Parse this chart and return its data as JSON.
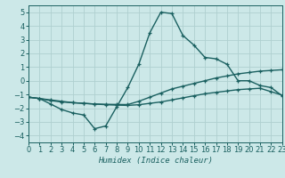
{
  "xlabel": "Humidex (Indice chaleur)",
  "background_color": "#cce8e8",
  "grid_color": "#afd0d0",
  "line_color": "#1a6060",
  "xlim": [
    0,
    23
  ],
  "ylim": [
    -4.5,
    5.5
  ],
  "xticks": [
    0,
    1,
    2,
    3,
    4,
    5,
    6,
    7,
    8,
    9,
    10,
    11,
    12,
    13,
    14,
    15,
    16,
    17,
    18,
    19,
    20,
    21,
    22,
    23
  ],
  "yticks": [
    -4,
    -3,
    -2,
    -1,
    0,
    1,
    2,
    3,
    4,
    5
  ],
  "line1_x": [
    0,
    1,
    2,
    3,
    4,
    5,
    6,
    7,
    8,
    9,
    10,
    11,
    12,
    13,
    14,
    15,
    16,
    17,
    18,
    19,
    20,
    21,
    22,
    23
  ],
  "line1_y": [
    -1.2,
    -1.3,
    -1.7,
    -2.1,
    -2.35,
    -2.5,
    -3.5,
    -3.3,
    -1.9,
    -0.5,
    1.2,
    3.5,
    5.0,
    4.9,
    3.3,
    2.6,
    1.7,
    1.6,
    1.2,
    0.0,
    0.0,
    -0.35,
    -0.5,
    -1.1
  ],
  "line2_x": [
    0,
    1,
    2,
    3,
    4,
    5,
    6,
    7,
    8,
    9,
    10,
    11,
    12,
    13,
    14,
    15,
    16,
    17,
    18,
    19,
    20,
    21,
    22,
    23
  ],
  "line2_y": [
    -1.2,
    -1.3,
    -1.4,
    -1.5,
    -1.6,
    -1.65,
    -1.7,
    -1.72,
    -1.73,
    -1.74,
    -1.5,
    -1.2,
    -0.9,
    -0.6,
    -0.4,
    -0.2,
    0.0,
    0.2,
    0.35,
    0.5,
    0.6,
    0.7,
    0.75,
    0.8
  ],
  "line3_x": [
    0,
    1,
    2,
    3,
    4,
    5,
    6,
    7,
    8,
    9,
    10,
    11,
    12,
    13,
    14,
    15,
    16,
    17,
    18,
    19,
    20,
    21,
    22,
    23
  ],
  "line3_y": [
    -1.2,
    -1.3,
    -1.45,
    -1.55,
    -1.6,
    -1.65,
    -1.7,
    -1.75,
    -1.78,
    -1.8,
    -1.75,
    -1.65,
    -1.55,
    -1.4,
    -1.25,
    -1.1,
    -0.95,
    -0.85,
    -0.75,
    -0.65,
    -0.6,
    -0.55,
    -0.8,
    -1.05
  ],
  "xlabel_fontsize": 6.5,
  "tick_fontsize": 6.0,
  "linewidth": 1.0,
  "marker_size": 3.0
}
